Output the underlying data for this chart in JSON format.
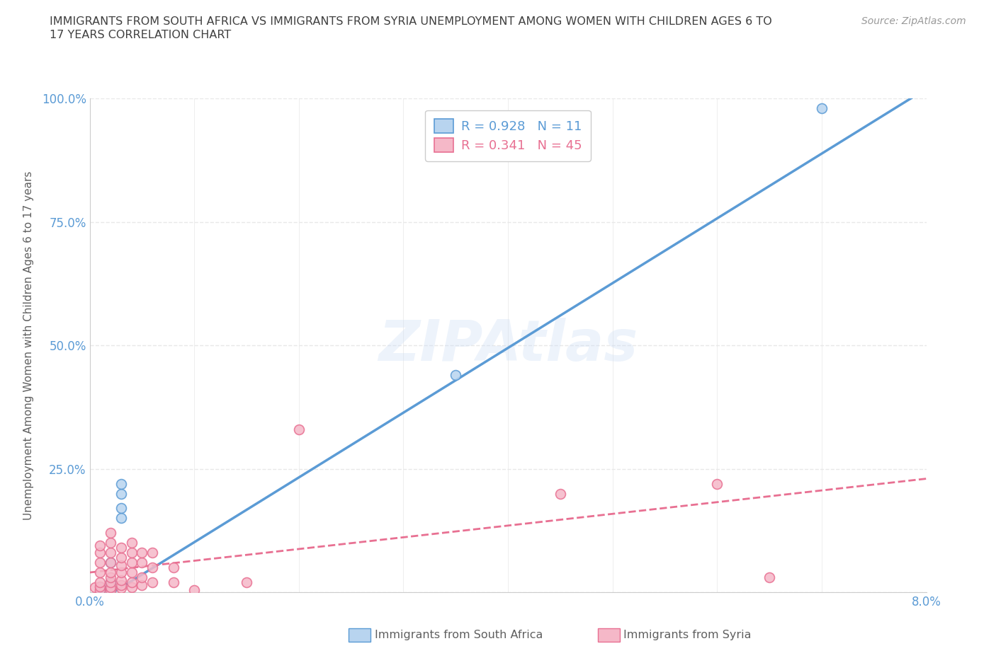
{
  "title_line1": "IMMIGRANTS FROM SOUTH AFRICA VS IMMIGRANTS FROM SYRIA UNEMPLOYMENT AMONG WOMEN WITH CHILDREN AGES 6 TO",
  "title_line2": "17 YEARS CORRELATION CHART",
  "source": "Source: ZipAtlas.com",
  "ylabel": "Unemployment Among Women with Children Ages 6 to 17 years",
  "xlim": [
    0.0,
    0.08
  ],
  "ylim": [
    0.0,
    1.0
  ],
  "xticks": [
    0.0,
    0.01,
    0.02,
    0.03,
    0.04,
    0.05,
    0.06,
    0.07,
    0.08
  ],
  "yticks": [
    0.0,
    0.25,
    0.5,
    0.75,
    1.0
  ],
  "ytick_labels": [
    "",
    "25.0%",
    "50.0%",
    "75.0%",
    "100.0%"
  ],
  "south_africa_points": [
    [
      0.001,
      0.005
    ],
    [
      0.001,
      0.01
    ],
    [
      0.002,
      0.008
    ],
    [
      0.002,
      0.02
    ],
    [
      0.002,
      0.06
    ],
    [
      0.003,
      0.15
    ],
    [
      0.003,
      0.17
    ],
    [
      0.003,
      0.2
    ],
    [
      0.003,
      0.22
    ],
    [
      0.035,
      0.44
    ],
    [
      0.07,
      0.98
    ]
  ],
  "south_africa_color": "#b8d4ef",
  "south_africa_edge": "#5b9bd5",
  "south_africa_R": 0.928,
  "south_africa_N": 11,
  "syria_points": [
    [
      0.0005,
      0.01
    ],
    [
      0.001,
      0.005
    ],
    [
      0.001,
      0.012
    ],
    [
      0.001,
      0.02
    ],
    [
      0.001,
      0.04
    ],
    [
      0.001,
      0.06
    ],
    [
      0.001,
      0.08
    ],
    [
      0.001,
      0.095
    ],
    [
      0.002,
      0.005
    ],
    [
      0.002,
      0.01
    ],
    [
      0.002,
      0.02
    ],
    [
      0.002,
      0.03
    ],
    [
      0.002,
      0.04
    ],
    [
      0.002,
      0.06
    ],
    [
      0.002,
      0.08
    ],
    [
      0.002,
      0.1
    ],
    [
      0.002,
      0.12
    ],
    [
      0.003,
      0.008
    ],
    [
      0.003,
      0.015
    ],
    [
      0.003,
      0.025
    ],
    [
      0.003,
      0.04
    ],
    [
      0.003,
      0.055
    ],
    [
      0.003,
      0.07
    ],
    [
      0.003,
      0.09
    ],
    [
      0.004,
      0.01
    ],
    [
      0.004,
      0.02
    ],
    [
      0.004,
      0.04
    ],
    [
      0.004,
      0.06
    ],
    [
      0.004,
      0.08
    ],
    [
      0.004,
      0.1
    ],
    [
      0.005,
      0.015
    ],
    [
      0.005,
      0.03
    ],
    [
      0.005,
      0.06
    ],
    [
      0.005,
      0.08
    ],
    [
      0.006,
      0.02
    ],
    [
      0.006,
      0.05
    ],
    [
      0.006,
      0.08
    ],
    [
      0.008,
      0.02
    ],
    [
      0.008,
      0.05
    ],
    [
      0.01,
      0.005
    ],
    [
      0.015,
      0.02
    ],
    [
      0.02,
      0.33
    ],
    [
      0.045,
      0.2
    ],
    [
      0.06,
      0.22
    ],
    [
      0.065,
      0.03
    ]
  ],
  "syria_color": "#f5b8c8",
  "syria_edge": "#e87092",
  "syria_R": 0.341,
  "syria_N": 45,
  "south_africa_line_color": "#5b9bd5",
  "syria_line_color": "#e87092",
  "syria_line_style": "--",
  "south_africa_line_style": "-",
  "background_color": "#ffffff",
  "grid_color": "#e8e8e8",
  "title_color": "#404040",
  "axis_label_color": "#606060",
  "tick_label_color": "#5b9bd5",
  "watermark_color": "#ccddf5",
  "watermark_alpha": 0.35,
  "legend_R_color_sa": "#5b9bd5",
  "legend_R_color_sy": "#e87092"
}
